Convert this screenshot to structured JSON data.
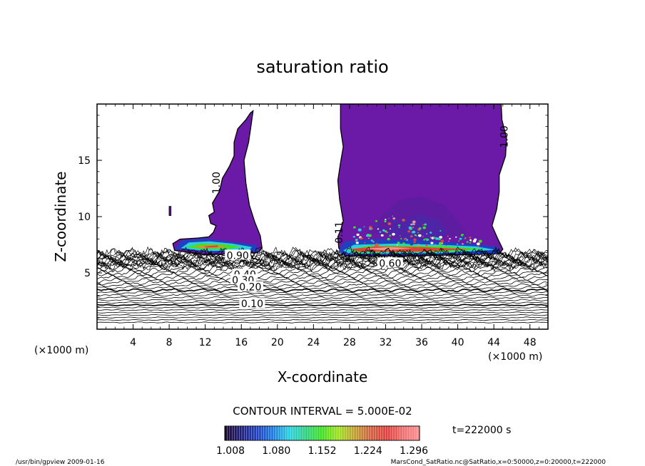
{
  "chart_data": {
    "type": "contour",
    "title": "saturation ratio",
    "xlabel": "X-coordinate",
    "ylabel": "Z-coordinate",
    "x_unit": "(×1000 m)",
    "x_unit_right": "(×1000 m)",
    "xlim": [
      0,
      50
    ],
    "ylim": [
      0,
      20
    ],
    "x_ticks": [
      4,
      8,
      12,
      16,
      20,
      24,
      28,
      32,
      36,
      40,
      44,
      48
    ],
    "y_ticks": [
      5,
      10,
      15
    ],
    "contour_interval_label": "CONTOUR INTERVAL = 5.000E-02",
    "contour_labels": [
      {
        "text": "1.00",
        "x": 13.3,
        "z": 13.0,
        "rotate": true
      },
      {
        "text": "1.00",
        "x": 45.2,
        "z": 17.1,
        "rotate": true
      },
      {
        "text": "0.11",
        "x": 26.9,
        "z": 8.6,
        "rotate": true
      },
      {
        "text": "0.90",
        "x": 15.6,
        "z": 6.5,
        "rotate": false
      },
      {
        "text": "0.60",
        "x": 32.5,
        "z": 5.8,
        "rotate": false
      },
      {
        "text": "0.40",
        "x": 16.4,
        "z": 4.8,
        "rotate": false
      },
      {
        "text": "0.30",
        "x": 16.2,
        "z": 4.3,
        "rotate": false
      },
      {
        "text": "0.20",
        "x": 17.0,
        "z": 3.7,
        "rotate": false
      },
      {
        "text": "0.10",
        "x": 17.2,
        "z": 2.2,
        "rotate": false
      }
    ],
    "colorbar": {
      "min": 1.008,
      "max": 1.296,
      "tick_labels": [
        "1.008",
        "1.080",
        "1.152",
        "1.224",
        "1.296"
      ],
      "colors": [
        "#1a0a2e",
        "#20207a",
        "#2040c0",
        "#1e7fe0",
        "#2ad0e0",
        "#30d080",
        "#40e020",
        "#a0e020",
        "#c0a030",
        "#d06040",
        "#e04040",
        "#f07070",
        "#ff9090"
      ]
    },
    "supersaturated_fill_color": "#6a1aa6",
    "time_label": "t=222000 s",
    "footer_left": "/usr/bin/gpview  2009-01-16",
    "footer_right": "MarsCond_SatRatio.nc@SatRatio,x=0:50000,z=0:20000,t=222000"
  }
}
